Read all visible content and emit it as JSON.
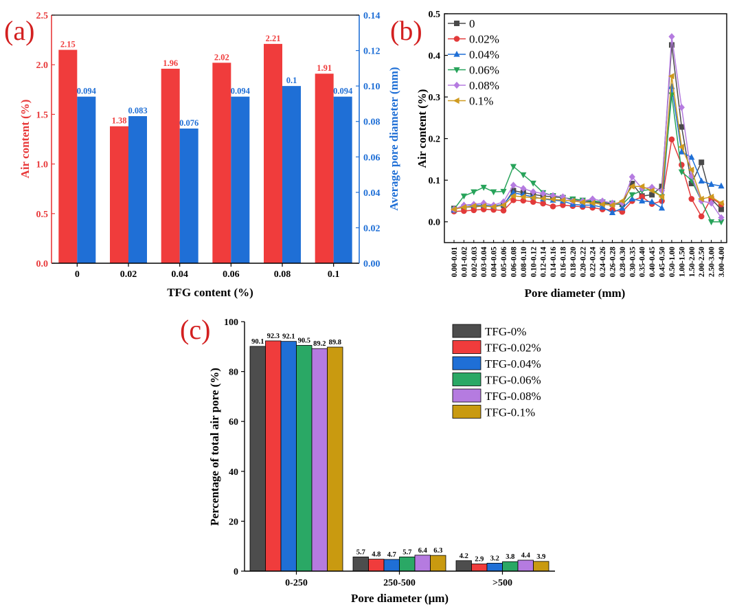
{
  "chart_data": [
    {
      "panel": "(a)",
      "type": "bar",
      "xlabel": "TFG content (%)",
      "categories": [
        "0",
        "0.02",
        "0.04",
        "0.06",
        "0.08",
        "0.1"
      ],
      "series": [
        {
          "name": "Air content (%)",
          "axis": "left",
          "color": "#f03c3c",
          "values": [
            2.15,
            1.38,
            1.96,
            2.02,
            2.21,
            1.91
          ],
          "labels": [
            "2.15",
            "1.38",
            "1.96",
            "2.02",
            "2.21",
            "1.91"
          ]
        },
        {
          "name": "Average pore diameter (mm)",
          "axis": "right",
          "color": "#1f6fd6",
          "values": [
            0.094,
            0.083,
            0.076,
            0.094,
            0.1,
            0.094
          ],
          "labels": [
            "0.094",
            "0.083",
            "0.076",
            "0.094",
            "0.1",
            "0.094"
          ]
        }
      ],
      "ylabel": "Air content (%)",
      "ylim": [
        0,
        2.5
      ],
      "yticks": [
        "0.0",
        "0.5",
        "1.0",
        "1.5",
        "2.0",
        "2.5"
      ],
      "y2label": "Average pore diameter (mm)",
      "y2lim": [
        0,
        0.14
      ],
      "y2ticks": [
        "0.00",
        "0.02",
        "0.04",
        "0.06",
        "0.08",
        "0.10",
        "0.12",
        "0.14"
      ]
    },
    {
      "panel": "(b)",
      "type": "line",
      "xlabel": "Pore diameter (mm)",
      "ylabel": "Air content (%)",
      "ylim": [
        -0.05,
        0.5
      ],
      "yticks": [
        "0.0",
        "0.1",
        "0.2",
        "0.3",
        "0.4",
        "0.5"
      ],
      "categories": [
        "0.00-0.01",
        "0.01-0.02",
        "0.02-0.03",
        "0.03-0.04",
        "0.04-0.05",
        "0.05-0.06",
        "0.06-0.08",
        "0.08-0.10",
        "0.10-0.12",
        "0.12-0.14",
        "0.14-0.16",
        "0.16-0.18",
        "0.18-0.20",
        "0.20-0.22",
        "0.22-0.24",
        "0.24-0.26",
        "0.26-0.28",
        "0.28-0.30",
        "0.30-0.35",
        "0.35-0.40",
        "0.40-0.45",
        "0.45-0.50",
        "0.50-1.00",
        "1.00-1.50",
        "1.50-2.00",
        "2.00-2.50",
        "2.50-3.00",
        "3.00-4.00"
      ],
      "legend": "top-left",
      "series": [
        {
          "name": "0",
          "color": "#4a4a4a",
          "marker": "square",
          "values": [
            0.032,
            0.035,
            0.036,
            0.038,
            0.036,
            0.04,
            0.075,
            0.07,
            0.066,
            0.062,
            0.06,
            0.058,
            0.054,
            0.05,
            0.048,
            0.045,
            0.043,
            0.042,
            0.092,
            0.062,
            0.065,
            0.085,
            0.425,
            0.228,
            0.092,
            0.143,
            0.055,
            0.03
          ]
        },
        {
          "name": "0.02%",
          "color": "#e23a3a",
          "marker": "circle",
          "values": [
            0.025,
            0.026,
            0.028,
            0.03,
            0.029,
            0.027,
            0.052,
            0.051,
            0.048,
            0.044,
            0.037,
            0.04,
            0.038,
            0.036,
            0.034,
            0.03,
            0.029,
            0.024,
            0.05,
            0.06,
            0.043,
            0.05,
            0.198,
            0.137,
            0.055,
            0.013,
            0.057,
            0.042
          ]
        },
        {
          "name": "0.04%",
          "color": "#1f6fd6",
          "marker": "triangle-up",
          "values": [
            0.028,
            0.04,
            0.04,
            0.04,
            0.038,
            0.042,
            0.07,
            0.065,
            0.06,
            0.055,
            0.052,
            0.05,
            0.042,
            0.04,
            0.04,
            0.035,
            0.022,
            0.033,
            0.055,
            0.05,
            0.048,
            0.033,
            0.325,
            0.168,
            0.155,
            0.098,
            0.09,
            0.086
          ]
        },
        {
          "name": "0.06%",
          "color": "#27a35a",
          "marker": "triangle-down",
          "values": [
            0.03,
            0.062,
            0.072,
            0.083,
            0.072,
            0.073,
            0.133,
            0.113,
            0.093,
            0.07,
            0.063,
            0.058,
            0.055,
            0.052,
            0.05,
            0.048,
            0.045,
            0.042,
            0.065,
            0.075,
            0.078,
            0.06,
            0.305,
            0.12,
            0.1,
            0.05,
            0.0,
            0.0
          ]
        },
        {
          "name": "0.08%",
          "color": "#b57be0",
          "marker": "diamond",
          "values": [
            0.03,
            0.04,
            0.042,
            0.045,
            0.04,
            0.048,
            0.088,
            0.08,
            0.072,
            0.068,
            0.063,
            0.06,
            0.05,
            0.05,
            0.055,
            0.05,
            0.045,
            0.045,
            0.108,
            0.08,
            0.083,
            0.075,
            0.445,
            0.275,
            0.11,
            0.05,
            0.045,
            0.01
          ]
        },
        {
          "name": "0.1%",
          "color": "#cf9a1f",
          "marker": "triangle-left",
          "values": [
            0.03,
            0.035,
            0.038,
            0.038,
            0.036,
            0.04,
            0.062,
            0.06,
            0.058,
            0.056,
            0.054,
            0.052,
            0.05,
            0.047,
            0.045,
            0.042,
            0.04,
            0.05,
            0.085,
            0.085,
            0.075,
            0.06,
            0.35,
            0.18,
            0.125,
            0.055,
            0.06,
            0.045
          ]
        }
      ]
    },
    {
      "panel": "(c)",
      "type": "bar",
      "xlabel": "Pore diameter (μm)",
      "ylabel": "Percentage of total air pore (%)",
      "ylim": [
        0,
        100
      ],
      "yticks": [
        "0",
        "20",
        "40",
        "60",
        "80",
        "100"
      ],
      "categories": [
        "0-250",
        "250-500",
        ">500"
      ],
      "legend": "top-right",
      "series": [
        {
          "name": "TFG-0%",
          "color": "#4d4d4d",
          "values": [
            90.1,
            5.7,
            4.2
          ],
          "labels": [
            "90.1",
            "5.7",
            "4.2"
          ]
        },
        {
          "name": "TFG-0.02%",
          "color": "#f03c3c",
          "values": [
            92.3,
            4.8,
            2.9
          ],
          "labels": [
            "92.3",
            "4.8",
            "2.9"
          ]
        },
        {
          "name": "TFG-0.04%",
          "color": "#1f6fd6",
          "values": [
            92.1,
            4.7,
            3.2
          ],
          "labels": [
            "92.1",
            "4.7",
            "3.2"
          ]
        },
        {
          "name": "TFG-0.06%",
          "color": "#2aa865",
          "values": [
            90.5,
            5.7,
            3.8
          ],
          "labels": [
            "90.5",
            "5.7",
            "3.8"
          ]
        },
        {
          "name": "TFG-0.08%",
          "color": "#b57be0",
          "values": [
            89.2,
            6.4,
            4.4
          ],
          "labels": [
            "89.2",
            "6.4",
            "4.4"
          ]
        },
        {
          "name": "TFG-0.1%",
          "color": "#c99a10",
          "values": [
            89.8,
            6.3,
            3.9
          ],
          "labels": [
            "89.8",
            "6.3",
            "3.9"
          ]
        }
      ]
    }
  ]
}
